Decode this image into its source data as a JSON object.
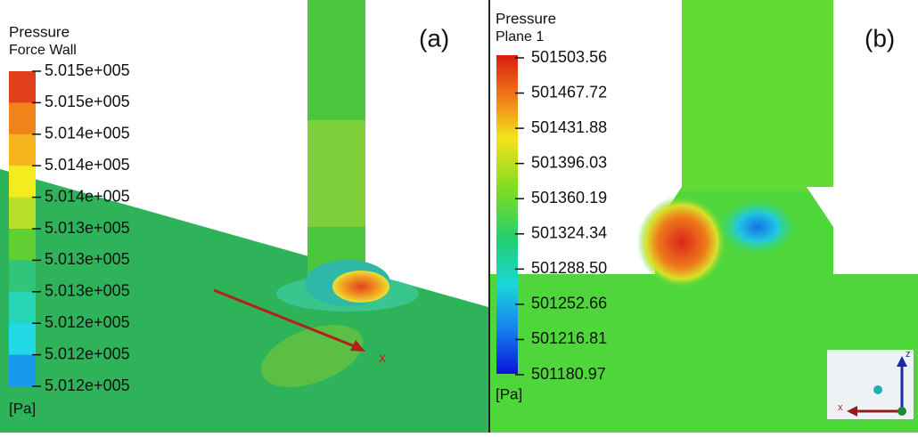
{
  "panels": [
    {
      "label": "(a)",
      "legend": {
        "title": "Pressure",
        "subtitle": "Force Wall",
        "ticks": [
          "5.015e+005",
          "5.015e+005",
          "5.014e+005",
          "5.014e+005",
          "5.014e+005",
          "5.013e+005",
          "5.013e+005",
          "5.013e+005",
          "5.012e+005",
          "5.012e+005",
          "5.012e+005"
        ],
        "unit": "[Pa]"
      },
      "axis_label": "x"
    },
    {
      "label": "(b)",
      "legend": {
        "title": "Pressure",
        "subtitle": "Plane 1",
        "ticks": [
          "501503.56",
          "501467.72",
          "501431.88",
          "501396.03",
          "501360.19",
          "501324.34",
          "501288.50",
          "501252.66",
          "501216.81",
          "501180.97"
        ],
        "unit": "[Pa]"
      },
      "triad": {
        "z": "z",
        "x": "x"
      }
    }
  ]
}
